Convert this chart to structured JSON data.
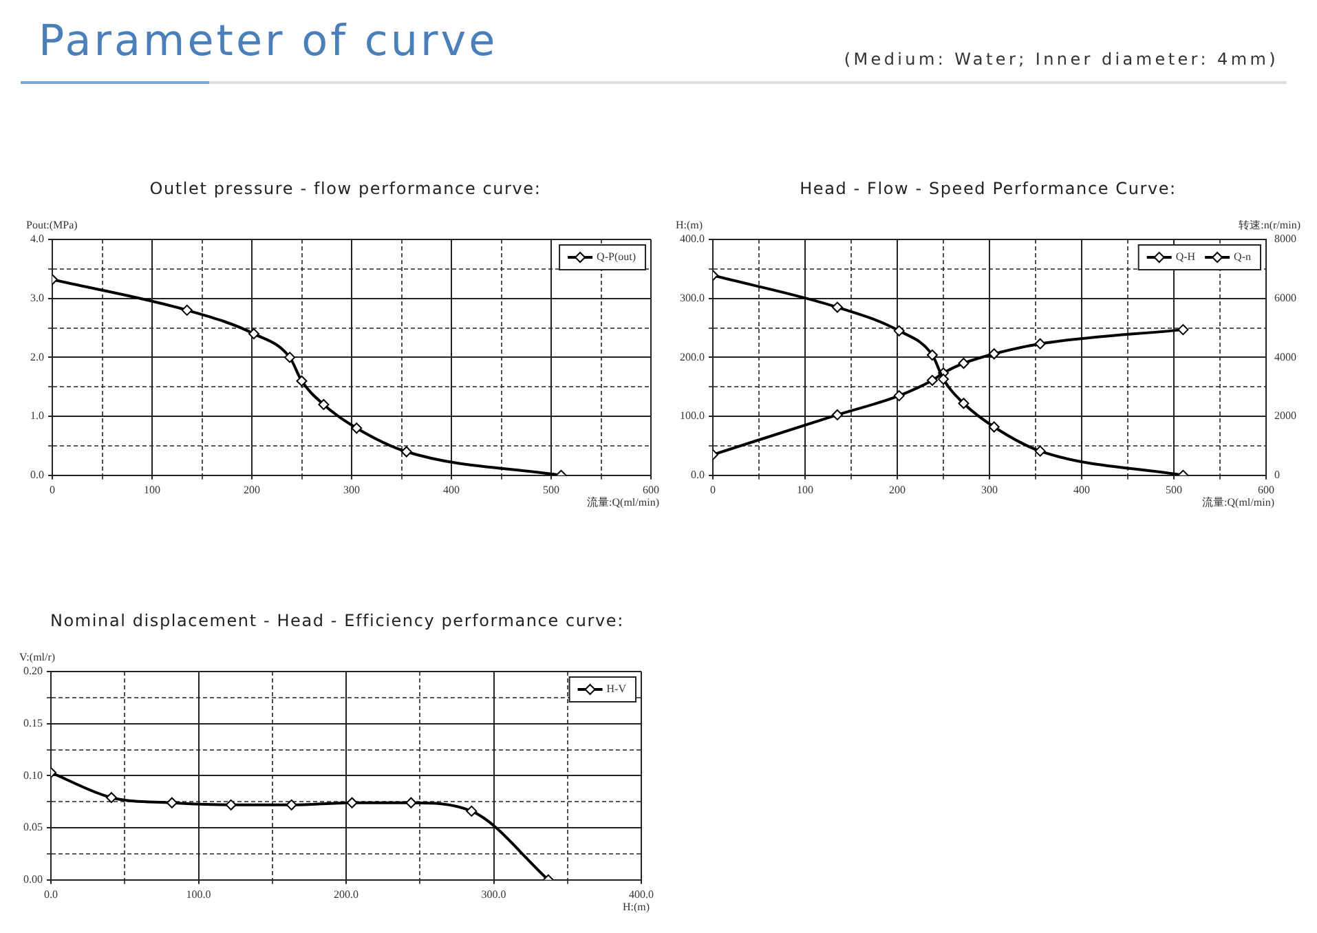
{
  "chart_data": [
    {
      "type": "other",
      "title": "Parameter of curve",
      "subtitle": "(Medium: Water; Inner diameter: 4mm)"
    },
    {
      "type": "line",
      "title": "Outlet pressure - flow performance curve:",
      "xlabel": "流量:Q(ml/min)",
      "ylabel": "Pout:(MPa)",
      "x": [
        0,
        135,
        202,
        238,
        250,
        272,
        305,
        355,
        510
      ],
      "series": [
        {
          "name": "Q-P(out)",
          "color": "#000000",
          "values": [
            3.32,
            2.8,
            2.4,
            2.0,
            1.6,
            1.2,
            0.8,
            0.4,
            0.0
          ]
        }
      ],
      "xlim": [
        0,
        600
      ],
      "xticks": [
        0,
        {
          "value": 50,
          "label": null
        },
        100,
        {
          "value": 150,
          "label": null
        },
        200,
        {
          "value": 250,
          "label": null
        },
        300,
        {
          "value": 350,
          "label": null
        },
        400,
        {
          "value": 450,
          "label": null
        },
        500,
        {
          "value": 550,
          "label": null
        },
        600
      ],
      "ylim": [
        0,
        4
      ],
      "yticks": [
        {
          "value": 0,
          "label": "0.0"
        },
        {
          "value": 0.5,
          "label": null
        },
        {
          "value": 1,
          "label": "1.0"
        },
        {
          "value": 1.5,
          "label": null
        },
        {
          "value": 2,
          "label": "2.0"
        },
        {
          "value": 2.5,
          "label": null
        },
        {
          "value": 3,
          "label": "3.0"
        },
        {
          "value": 3.5,
          "label": null
        },
        {
          "value": 4,
          "label": "4.0"
        }
      ],
      "grid": true,
      "legend": "top right",
      "marker": "diamond",
      "line_style": "solid"
    },
    {
      "type": "line",
      "title": "Head - Flow - Speed Performance Curve:",
      "xlabel": "流量:Q(ml/min)",
      "ylabel": "H:(m)",
      "y2label": "转速:n(r/min)",
      "x": [
        0,
        135,
        202,
        238,
        250,
        272,
        305,
        355,
        510
      ],
      "series": [
        {
          "name": "Q-H",
          "color": "#000000",
          "values": [
            339,
            285,
            245,
            204,
            163,
            122,
            82,
            41,
            0
          ]
        },
        {
          "name": "Q-n",
          "color": "#000000",
          "axis": "y2",
          "values": [
            700,
            2050,
            2700,
            3220,
            3470,
            3800,
            4120,
            4460,
            4940
          ]
        }
      ],
      "xlim": [
        0,
        600
      ],
      "xticks": [
        0,
        {
          "value": 50,
          "label": null
        },
        100,
        {
          "value": 150,
          "label": null
        },
        200,
        {
          "value": 250,
          "label": null
        },
        300,
        {
          "value": 350,
          "label": null
        },
        400,
        {
          "value": 450,
          "label": null
        },
        500,
        {
          "value": 550,
          "label": null
        },
        600
      ],
      "ylim": [
        0,
        400
      ],
      "yticks": [
        {
          "value": 0,
          "label": "0.0"
        },
        {
          "value": 50,
          "label": null
        },
        {
          "value": 100,
          "label": "100.0"
        },
        {
          "value": 150,
          "label": null
        },
        {
          "value": 200,
          "label": "200.0"
        },
        {
          "value": 250,
          "label": null
        },
        {
          "value": 300,
          "label": "300.0"
        },
        {
          "value": 350,
          "label": null
        },
        {
          "value": 400,
          "label": "400.0"
        }
      ],
      "y2lim": [
        0,
        8000
      ],
      "y2ticks": [
        0,
        2000,
        4000,
        6000,
        8000
      ],
      "grid": true,
      "legend": "top right",
      "marker": "diamond",
      "line_style": "solid"
    },
    {
      "type": "line",
      "title": "Nominal displacement - Head - Efficiency performance curve:",
      "xlabel": "H:(m)",
      "ylabel": "V:(ml/r)",
      "x": [
        0,
        41,
        82,
        122,
        163,
        204,
        244,
        285,
        337
      ],
      "series": [
        {
          "name": "H-V",
          "color": "#000000",
          "values": [
            0.103,
            0.079,
            0.074,
            0.072,
            0.072,
            0.074,
            0.074,
            0.066,
            0.0
          ]
        }
      ],
      "xlim": [
        0,
        400
      ],
      "xticks": [
        {
          "value": 0,
          "label": "0.0"
        },
        {
          "value": 50,
          "label": null
        },
        {
          "value": 100,
          "label": "100.0"
        },
        {
          "value": 150,
          "label": null
        },
        {
          "value": 200,
          "label": "200.0"
        },
        {
          "value": 250,
          "label": null
        },
        {
          "value": 300,
          "label": "300.0"
        },
        {
          "value": 350,
          "label": null
        },
        {
          "value": 400,
          "label": "400.0"
        }
      ],
      "ylim": [
        0,
        0.2
      ],
      "yticks": [
        {
          "value": 0,
          "label": "0.00"
        },
        {
          "value": 0.025,
          "label": null
        },
        {
          "value": 0.05,
          "label": "0.05"
        },
        {
          "value": 0.075,
          "label": null
        },
        {
          "value": 0.1,
          "label": "0.10"
        },
        {
          "value": 0.125,
          "label": null
        },
        {
          "value": 0.15,
          "label": "0.15"
        },
        {
          "value": 0.175,
          "label": null
        },
        {
          "value": 0.2,
          "label": "0.20"
        }
      ],
      "grid": true,
      "legend": "top right",
      "marker": "diamond",
      "line_style": "solid"
    }
  ]
}
